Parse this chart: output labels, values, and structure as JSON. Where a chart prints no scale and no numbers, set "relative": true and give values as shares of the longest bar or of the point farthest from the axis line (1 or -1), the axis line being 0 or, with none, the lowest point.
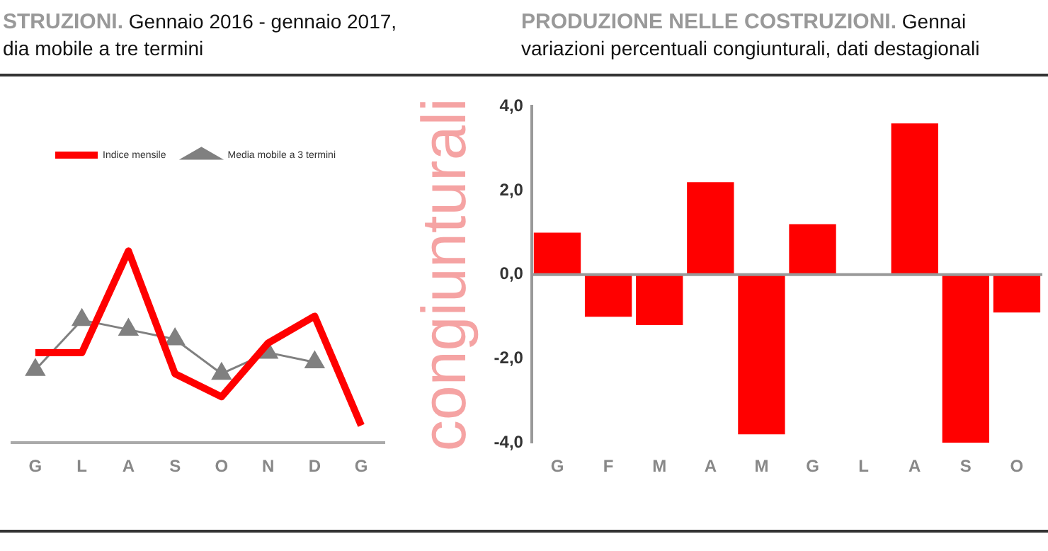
{
  "chart_data": [
    {
      "type": "line",
      "title": "STRUZIONI.",
      "subtitle": "Gennaio 2016 - gennaio 2017, dia mobile a tre termini",
      "categories": [
        "G",
        "L",
        "A",
        "S",
        "O",
        "N",
        "D",
        "G"
      ],
      "relative": true,
      "legend": "top",
      "grid": false,
      "series": [
        {
          "name": "Indice mensile",
          "color": "#ff0000",
          "marker": "none",
          "values": [
            0.47,
            0.47,
            1,
            0.36,
            0.24,
            0.52,
            0.66,
            0.09
          ]
        },
        {
          "name": "Media mobile a 3 termini",
          "color": "#808080",
          "marker": "triangle",
          "values": [
            0.38,
            0.64,
            0.59,
            0.54,
            0.36,
            0.47,
            0.42,
            null
          ]
        }
      ]
    },
    {
      "type": "bar",
      "title": "PRODUZIONE NELLE COSTRUZIONI.",
      "subtitle": "Gennai variazioni percentuali congiunturali, dati destagionali",
      "ylabel": "congiunturali",
      "categories": [
        "G",
        "F",
        "M",
        "A",
        "M",
        "G",
        "L",
        "A",
        "S",
        "O"
      ],
      "values": [
        1.0,
        -1.0,
        -1.2,
        2.2,
        -3.8,
        1.2,
        0.0,
        3.6,
        -4.0,
        -0.9
      ],
      "color": "#ff0000",
      "ylim": [
        -4,
        4
      ],
      "legend": false,
      "grid": false,
      "ref_lines": [
        {
          "axis": "y",
          "value": 0,
          "color": "#999999"
        }
      ],
      "yticks": [
        {
          "value": -4,
          "label": "-4,0"
        },
        {
          "value": -2,
          "label": "-2,0"
        },
        {
          "value": 0,
          "label": "0,0"
        },
        {
          "value": 2,
          "label": "2,0"
        },
        {
          "value": 4,
          "label": "4,0"
        }
      ]
    }
  ]
}
